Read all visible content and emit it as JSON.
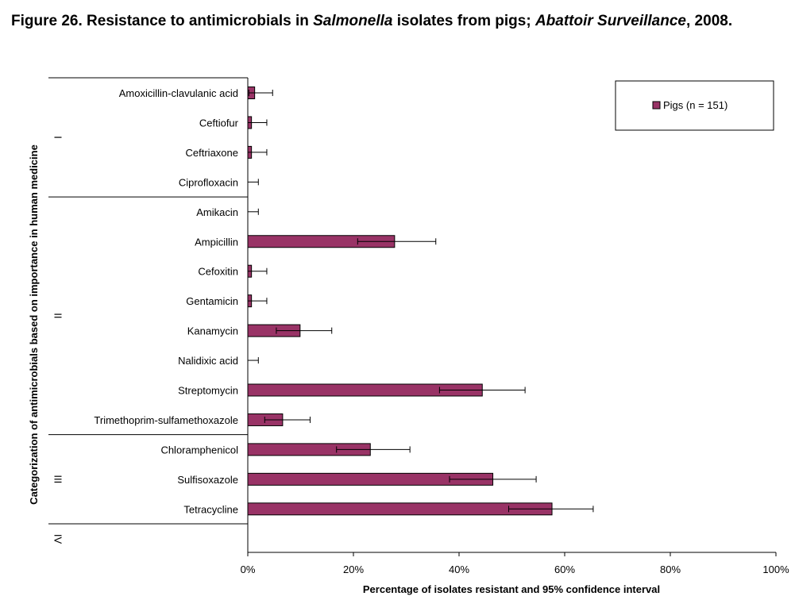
{
  "title": {
    "prefix": "Figure 26. Resistance to antimicrobials in ",
    "italic1": "Salmonella",
    "middle": " isolates from pigs; ",
    "italic2": "Abattoir Surveillance",
    "suffix": ", 2008."
  },
  "chart_data": {
    "type": "bar",
    "orientation": "horizontal",
    "xlabel": "Percentage of isolates resistant and 95% confidence interval",
    "ylabel": "Categorization of antimicrobials based on importance in human medicine",
    "xlim": [
      0,
      100
    ],
    "x_ticks": [
      "0%",
      "20%",
      "40%",
      "60%",
      "80%",
      "100%"
    ],
    "grid": false,
    "legend_position": "top-right",
    "categories": [
      "Amoxicillin-clavulanic acid",
      "Ceftiofur",
      "Ceftriaxone",
      "Ciprofloxacin",
      "Amikacin",
      "Ampicillin",
      "Cefoxitin",
      "Gentamicin",
      "Kanamycin",
      "Nalidixic acid",
      "Streptomycin",
      "Trimethoprim-sulfamethoxazole",
      "Chloramphenicol",
      "Sulfisoxazole",
      "Tetracycline"
    ],
    "groups": [
      {
        "label": "I",
        "categories": [
          "Amoxicillin-clavulanic acid",
          "Ceftiofur",
          "Ceftriaxone",
          "Ciprofloxacin"
        ]
      },
      {
        "label": "II",
        "categories": [
          "Amikacin",
          "Ampicillin",
          "Cefoxitin",
          "Gentamicin",
          "Kanamycin",
          "Nalidixic acid",
          "Streptomycin",
          "Trimethoprim-sulfamethoxazole"
        ]
      },
      {
        "label": "III",
        "categories": [
          "Chloramphenicol",
          "Sulfisoxazole",
          "Tetracycline"
        ]
      },
      {
        "label": "IV",
        "categories": []
      }
    ],
    "series": [
      {
        "name": "Pigs (n = 151)",
        "color": "#993366",
        "values": [
          1.3,
          0.7,
          0.7,
          0,
          0,
          27.8,
          0.7,
          0.7,
          9.9,
          0,
          44.4,
          6.6,
          23.2,
          46.4,
          57.6
        ],
        "ci_low": [
          0.2,
          0,
          0,
          0,
          0,
          20.8,
          0,
          0,
          5.4,
          0,
          36.3,
          3.2,
          16.8,
          38.2,
          49.4
        ],
        "ci_high": [
          4.7,
          3.6,
          3.6,
          2.0,
          2.0,
          35.6,
          3.6,
          3.6,
          15.9,
          2.0,
          52.5,
          11.8,
          30.7,
          54.6,
          65.4
        ]
      }
    ]
  }
}
